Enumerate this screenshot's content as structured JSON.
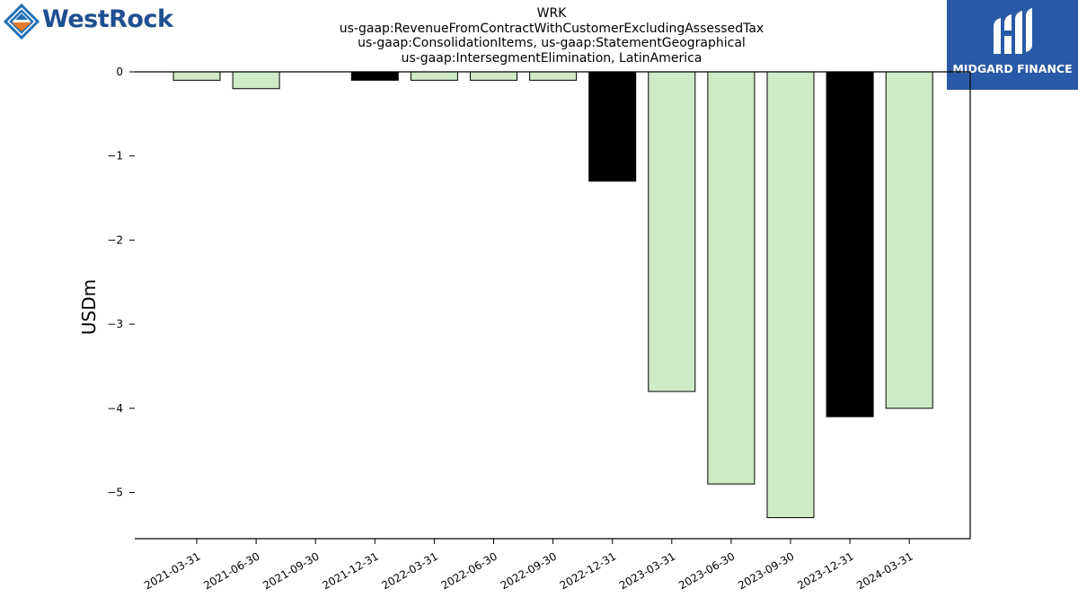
{
  "header": {
    "left_logo_text": "WestRock",
    "right_logo_text": "MIDGARD FINANCE"
  },
  "chart_data": {
    "type": "bar",
    "title": "WRK",
    "subtitle_lines": [
      "us-gaap:RevenueFromContractWithCustomerExcludingAssessedTax",
      "us-gaap:ConsolidationItems, us-gaap:StatementGeographical",
      "us-gaap:IntersegmentElimination, LatinAmerica"
    ],
    "xlabel": "",
    "ylabel": "USDm",
    "categories": [
      "2021-03-31",
      "2021-06-30",
      "2021-09-30",
      "2021-12-31",
      "2022-03-31",
      "2022-06-30",
      "2022-09-30",
      "2022-12-31",
      "2023-03-31",
      "2023-06-30",
      "2023-09-30",
      "2023-12-31",
      "2024-03-31"
    ],
    "values": [
      -0.1,
      -0.2,
      0.0,
      -0.1,
      -0.1,
      -0.1,
      -0.1,
      -1.3,
      -3.8,
      -4.9,
      -5.3,
      -4.1,
      -4.0
    ],
    "bar_colors": [
      "#cfeac5",
      "#cfeac5",
      "#cfeac5",
      "#000000",
      "#cfeac5",
      "#cfeac5",
      "#cfeac5",
      "#000000",
      "#cfeac5",
      "#cfeac5",
      "#cfeac5",
      "#000000",
      "#cfeac5"
    ],
    "yticks": [
      0,
      -1,
      -2,
      -3,
      -4,
      -5
    ],
    "ytick_labels": [
      "0",
      "−1",
      "−2",
      "−3",
      "−4",
      "−5"
    ],
    "ylim": [
      -5.55,
      0
    ],
    "grid": false,
    "legend": "none"
  },
  "colors": {
    "light_bar": "#cfeac5",
    "dark_bar": "#000000",
    "brand_blue": "#1f4f8f",
    "brand_orange": "#e8792b",
    "midgard_bg": "#2a5aa7"
  }
}
